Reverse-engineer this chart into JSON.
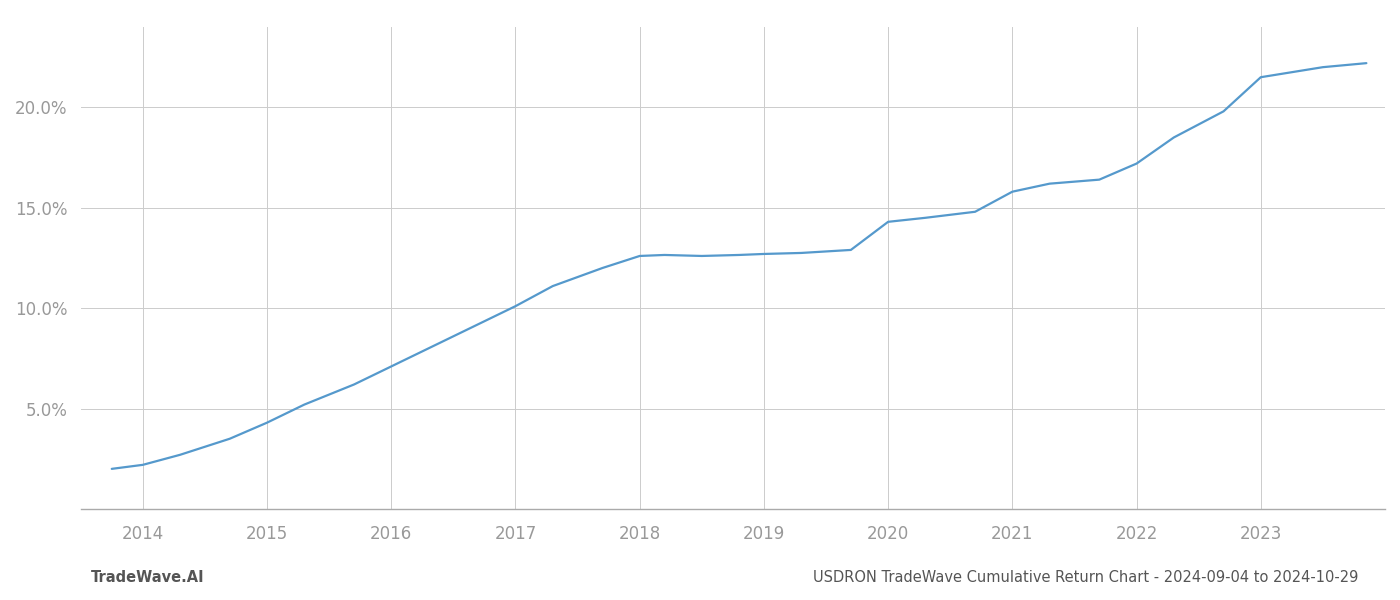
{
  "x_values": [
    2013.75,
    2014.0,
    2014.3,
    2014.7,
    2015.0,
    2015.3,
    2015.7,
    2016.0,
    2016.3,
    2016.7,
    2017.0,
    2017.3,
    2017.7,
    2018.0,
    2018.2,
    2018.5,
    2018.8,
    2019.0,
    2019.3,
    2019.7,
    2020.0,
    2020.3,
    2020.7,
    2021.0,
    2021.3,
    2021.7,
    2022.0,
    2022.3,
    2022.7,
    2023.0,
    2023.5,
    2023.85
  ],
  "y_values": [
    2.0,
    2.2,
    2.7,
    3.5,
    4.3,
    5.2,
    6.2,
    7.1,
    8.0,
    9.2,
    10.1,
    11.1,
    12.0,
    12.6,
    12.65,
    12.6,
    12.65,
    12.7,
    12.75,
    12.9,
    14.3,
    14.5,
    14.8,
    15.8,
    16.2,
    16.4,
    17.2,
    18.5,
    19.8,
    21.5,
    22.0,
    22.2
  ],
  "xlim": [
    2013.5,
    2024.0
  ],
  "ylim": [
    0.0,
    24.0
  ],
  "xticks": [
    2014,
    2015,
    2016,
    2017,
    2018,
    2019,
    2020,
    2021,
    2022,
    2023
  ],
  "yticks": [
    5.0,
    10.0,
    15.0,
    20.0
  ],
  "ytick_labels": [
    "5.0%",
    "10.0%",
    "15.0%",
    "20.0%"
  ],
  "line_color": "#5599cc",
  "line_width": 1.6,
  "grid_color": "#cccccc",
  "bg_color": "#ffffff",
  "footer_left": "TradeWave.AI",
  "footer_right": "USDRON TradeWave Cumulative Return Chart - 2024-09-04 to 2024-10-29",
  "tick_color": "#999999",
  "axis_color": "#aaaaaa",
  "footer_text_color": "#555555",
  "footer_left_weight": "bold"
}
